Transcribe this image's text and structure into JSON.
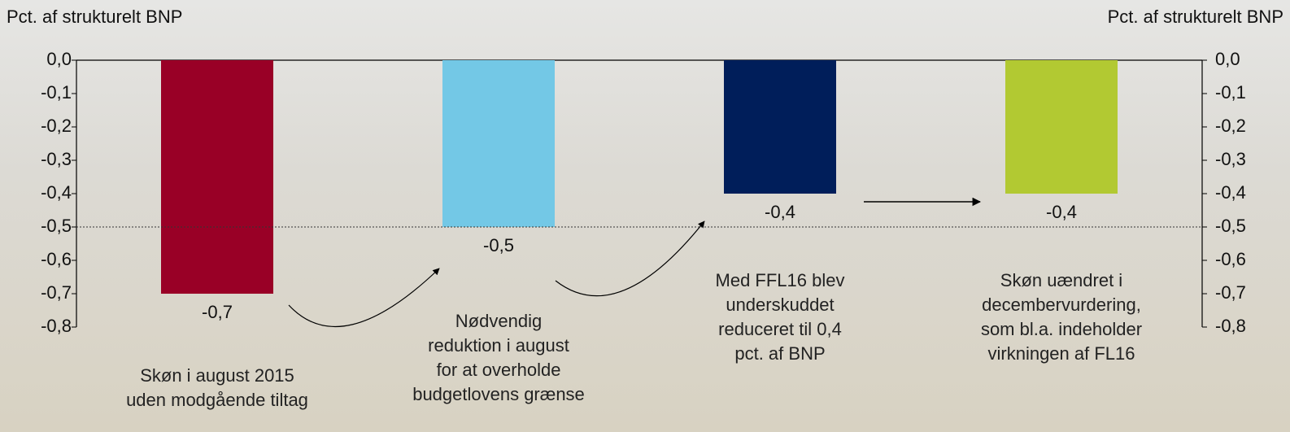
{
  "chart_data": {
    "type": "bar",
    "y_label": "Pct. af strukturelt BNP",
    "y2_label": "Pct. af strukturelt BNP",
    "categories": [
      "Skøn i august 2015\nuden modgående tiltag",
      "Nødvendig\nreduktion i august\nfor at overholde\nbudgetlovens grænse",
      "Med FFL16 blev\nunderskuddet\nreduceret til 0,4\npct. af BNP",
      "Skøn uændret i\ndecembervurdering,\nsom bl.a. indeholder\nvirkningen af FL16"
    ],
    "values": [
      -0.7,
      -0.5,
      -0.4,
      -0.4
    ],
    "value_labels": [
      "-0,7",
      "-0,5",
      "-0,4",
      "-0,4"
    ],
    "colors": [
      "#990026",
      "#73c8e6",
      "#001e5a",
      "#b2c932"
    ],
    "ylim": [
      -0.8,
      0
    ],
    "yticks": [
      {
        "value": 0,
        "label": "0,0"
      },
      {
        "value": -0.1,
        "label": "-0,1"
      },
      {
        "value": -0.2,
        "label": "-0,2"
      },
      {
        "value": -0.3,
        "label": "-0,3"
      },
      {
        "value": -0.4,
        "label": "-0,4"
      },
      {
        "value": -0.5,
        "label": "-0,5"
      },
      {
        "value": -0.6,
        "label": "-0,6"
      },
      {
        "value": -0.7,
        "label": "-0,7"
      },
      {
        "value": -0.8,
        "label": "-0,8"
      }
    ],
    "y2lim": [
      -0.8,
      0
    ],
    "y2ticks": [
      {
        "value": 0,
        "label": "0,0"
      },
      {
        "value": -0.1,
        "label": "-0,1"
      },
      {
        "value": -0.2,
        "label": "-0,2"
      },
      {
        "value": -0.3,
        "label": "-0,3"
      },
      {
        "value": -0.4,
        "label": "-0,4"
      },
      {
        "value": -0.5,
        "label": "-0,5"
      },
      {
        "value": -0.6,
        "label": "-0,6"
      },
      {
        "value": -0.7,
        "label": "-0,7"
      },
      {
        "value": -0.8,
        "label": "-0,8"
      }
    ],
    "reference_line": -0.5
  }
}
